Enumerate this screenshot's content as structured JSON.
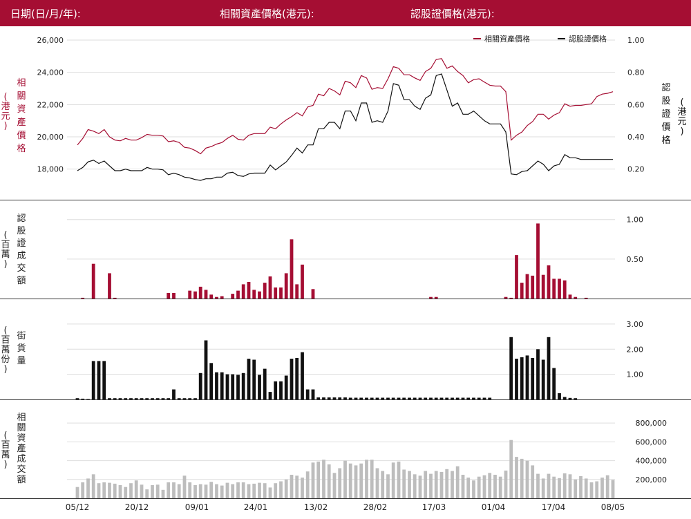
{
  "header": {
    "date_label": "日期(日/月/年):",
    "underlying_price_label": "相關資產價格(港元):",
    "warrant_price_label": "認股證價格(港元):"
  },
  "colors": {
    "brand": "#a50e33",
    "warrant": "#111111",
    "volume_bar": "#bdbdbd",
    "grid": "#dddddd"
  },
  "chart_data": [
    {
      "type": "line",
      "legend": [
        "相關資產價格",
        "認股證價格"
      ],
      "legend_position": "top-right",
      "left_axis_label": [
        "相",
        "關",
        "資",
        "產",
        "價",
        "格"
      ],
      "left_axis_unit": [
        "(",
        "港",
        "元",
        ")"
      ],
      "right_axis_label": [
        "認",
        "股",
        "證",
        "價",
        "格"
      ],
      "right_axis_unit": [
        "(",
        "港",
        "元",
        ")"
      ],
      "left_ticks": [
        "18,000",
        "20,000",
        "22,000",
        "24,000",
        "26,000"
      ],
      "right_ticks": [
        "0.20",
        "0.40",
        "0.60",
        "0.80",
        "1.00"
      ],
      "left_ylim": [
        17000,
        26000
      ],
      "right_ylim": [
        0.1,
        1.0
      ],
      "grid": true,
      "series": [
        {
          "name": "相關資產價格",
          "axis": "left",
          "values": [
            19500,
            19900,
            20450,
            20350,
            20200,
            20450,
            20000,
            19800,
            19750,
            19900,
            19800,
            19800,
            19950,
            20150,
            20100,
            20100,
            20050,
            19700,
            19750,
            19650,
            19350,
            19300,
            19150,
            18950,
            19300,
            19400,
            19550,
            19650,
            19900,
            20100,
            19850,
            19800,
            20100,
            20200,
            20200,
            20200,
            20600,
            20500,
            20800,
            21050,
            21250,
            21500,
            21300,
            21850,
            21950,
            22650,
            22550,
            23000,
            22850,
            22600,
            23450,
            23350,
            23050,
            23800,
            23650,
            22950,
            23050,
            23000,
            23600,
            24350,
            24250,
            23850,
            23850,
            23650,
            23500,
            24050,
            24250,
            24800,
            24850,
            24250,
            24400,
            24050,
            23800,
            23350,
            23550,
            23600,
            23400,
            23200,
            23150,
            23150,
            22800,
            19800,
            20100,
            20300,
            20700,
            20950,
            21400,
            21400,
            21100,
            21350,
            21500,
            22050,
            21900,
            21950,
            21950,
            22000,
            22050,
            22500,
            22650,
            22700,
            22800
          ]
        },
        {
          "name": "認股證價格",
          "axis": "right",
          "values": [
            0.19,
            0.21,
            0.245,
            0.255,
            0.235,
            0.25,
            0.22,
            0.19,
            0.19,
            0.2,
            0.19,
            0.19,
            0.19,
            0.21,
            0.2,
            0.2,
            0.195,
            0.165,
            0.175,
            0.165,
            0.15,
            0.145,
            0.135,
            0.13,
            0.14,
            0.14,
            0.15,
            0.15,
            0.175,
            0.18,
            0.16,
            0.155,
            0.17,
            0.175,
            0.175,
            0.175,
            0.225,
            0.195,
            0.22,
            0.245,
            0.285,
            0.33,
            0.3,
            0.35,
            0.35,
            0.45,
            0.45,
            0.49,
            0.49,
            0.45,
            0.56,
            0.56,
            0.5,
            0.61,
            0.61,
            0.49,
            0.5,
            0.49,
            0.56,
            0.73,
            0.72,
            0.63,
            0.63,
            0.59,
            0.57,
            0.64,
            0.66,
            0.78,
            0.79,
            0.69,
            0.59,
            0.61,
            0.54,
            0.54,
            0.56,
            0.53,
            0.5,
            0.48,
            0.48,
            0.48,
            0.43,
            0.17,
            0.165,
            0.185,
            0.19,
            0.22,
            0.25,
            0.23,
            0.19,
            0.22,
            0.23,
            0.29,
            0.27,
            0.27,
            0.26,
            0.26,
            0.26,
            0.26,
            0.26,
            0.26,
            0.26
          ]
        }
      ]
    },
    {
      "type": "bar",
      "axis_label": [
        "認",
        "股",
        "證",
        "成",
        "交",
        "額"
      ],
      "axis_unit": [
        "(",
        "百",
        "萬",
        ")"
      ],
      "ticks": [
        "0.50",
        "1.00"
      ],
      "ylim": [
        0,
        1.05
      ],
      "values": [
        0,
        0.01,
        0,
        0.44,
        0,
        0,
        0.32,
        0.01,
        0,
        0,
        0,
        0,
        0,
        0,
        0,
        0,
        0,
        0.07,
        0.07,
        0,
        0,
        0.1,
        0.09,
        0.15,
        0.11,
        0.05,
        0.02,
        0.03,
        0,
        0.06,
        0.1,
        0.18,
        0.21,
        0.11,
        0.09,
        0.2,
        0.28,
        0.14,
        0.14,
        0.32,
        0.75,
        0.18,
        0.43,
        0,
        0.12,
        0,
        0,
        0,
        0,
        0,
        0,
        0,
        0,
        0,
        0,
        0,
        0,
        0,
        0,
        0,
        0,
        0,
        0,
        0,
        0,
        0,
        0.02,
        0.02,
        0,
        0,
        0,
        0,
        0,
        0,
        0,
        0,
        0,
        0,
        0,
        0,
        0.02,
        0.01,
        0.55,
        0.2,
        0.31,
        0.29,
        0.95,
        0.3,
        0.42,
        0.25,
        0.25,
        0.23,
        0.05,
        0.02,
        0,
        0.01,
        0,
        0,
        0,
        0,
        0,
        0,
        0
      ]
    },
    {
      "type": "bar",
      "axis_label": [
        "街",
        "貨",
        "量"
      ],
      "axis_unit": [
        "(",
        "百",
        "萬",
        "份",
        ")"
      ],
      "ticks": [
        "1.00",
        "2.00",
        "3.00"
      ],
      "ylim": [
        0,
        3.3
      ],
      "values": [
        0.05,
        0.03,
        0.02,
        1.53,
        1.53,
        1.53,
        0.05,
        0.05,
        0.05,
        0.05,
        0.05,
        0.05,
        0.05,
        0.05,
        0.05,
        0.05,
        0.05,
        0.05,
        0.4,
        0.05,
        0.05,
        0.05,
        0.05,
        1.05,
        2.35,
        1.45,
        1.08,
        1.08,
        1.0,
        1.0,
        0.98,
        1.05,
        1.62,
        1.58,
        0.98,
        1.22,
        0.3,
        0.72,
        0.72,
        0.95,
        1.62,
        1.65,
        1.88,
        0.4,
        0.4,
        0.08,
        0.08,
        0.08,
        0.08,
        0.08,
        0.08,
        0.07,
        0.07,
        0.07,
        0.07,
        0.07,
        0.07,
        0.07,
        0.07,
        0.07,
        0.07,
        0.07,
        0.07,
        0.07,
        0.07,
        0.07,
        0.07,
        0.07,
        0.07,
        0.07,
        0.07,
        0.07,
        0.07,
        0.07,
        0.07,
        0.07,
        0.07,
        0.07,
        0,
        0,
        0,
        2.48,
        1.62,
        1.68,
        1.75,
        1.65,
        2.0,
        1.58,
        2.48,
        1.25,
        0.25,
        0.1,
        0.06,
        0.05,
        0,
        0,
        0,
        0,
        0,
        0,
        0
      ]
    },
    {
      "type": "bar",
      "axis_label": [
        "相",
        "關",
        "資",
        "產",
        "成",
        "交",
        "額"
      ],
      "axis_unit": [
        "(",
        "百",
        "萬",
        ")"
      ],
      "ticks": [
        "200,000",
        "400,000",
        "600,000",
        "800,000"
      ],
      "ylim": [
        0,
        860000
      ],
      "values": [
        120000,
        170000,
        210000,
        255000,
        160000,
        170000,
        165000,
        155000,
        140000,
        120000,
        160000,
        190000,
        145000,
        95000,
        140000,
        145000,
        90000,
        170000,
        170000,
        150000,
        240000,
        170000,
        140000,
        150000,
        145000,
        175000,
        150000,
        135000,
        165000,
        150000,
        170000,
        170000,
        150000,
        155000,
        165000,
        160000,
        115000,
        160000,
        180000,
        200000,
        250000,
        240000,
        220000,
        285000,
        380000,
        390000,
        410000,
        360000,
        270000,
        320000,
        400000,
        370000,
        350000,
        370000,
        410000,
        410000,
        320000,
        290000,
        255000,
        380000,
        390000,
        305000,
        290000,
        255000,
        240000,
        290000,
        260000,
        290000,
        280000,
        310000,
        290000,
        340000,
        250000,
        220000,
        190000,
        230000,
        245000,
        270000,
        250000,
        230000,
        295000,
        620000,
        440000,
        420000,
        400000,
        350000,
        260000,
        210000,
        260000,
        230000,
        215000,
        265000,
        255000,
        200000,
        235000,
        210000,
        170000,
        180000,
        220000,
        245000,
        195000
      ]
    }
  ],
  "x_labels": [
    "05/12",
    "20/12",
    "09/01",
    "24/01",
    "13/02",
    "28/02",
    "17/03",
    "01/04",
    "17/04",
    "08/05"
  ]
}
